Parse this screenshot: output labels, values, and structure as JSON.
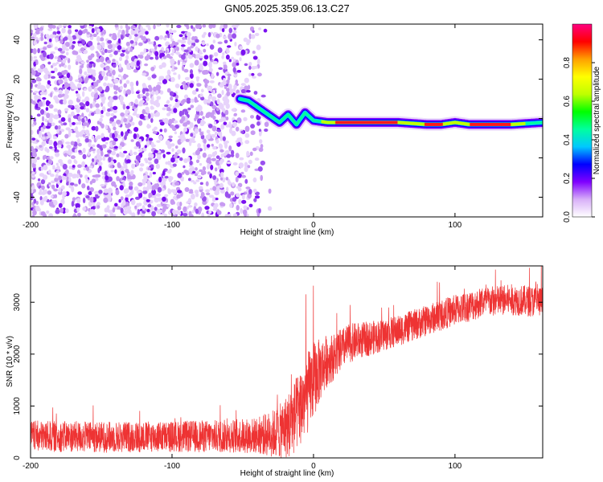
{
  "title": "GN05.2025.359.06.13.C27",
  "chart_data": [
    {
      "type": "heatmap",
      "xlabel": "Height of straight line (km)",
      "ylabel": "Frequency (Hz)",
      "xlim": [
        -200,
        162
      ],
      "ylim": [
        -50,
        48
      ],
      "xticks": [
        -200,
        -100,
        0,
        100
      ],
      "yticks": [
        -40,
        -20,
        0,
        20,
        40
      ],
      "grid": false,
      "colorbar": {
        "label": "Normalized spectral amplitude",
        "range": [
          0,
          1
        ],
        "ticks": [
          "0.0",
          "0.2",
          "0.4",
          "0.6",
          "0.8"
        ],
        "colors": [
          "#ffffff",
          "#d8b0f8",
          "#7f00ff",
          "#0000ff",
          "#00c8ff",
          "#00ff9f",
          "#00ff00",
          "#bfff00",
          "#ffff00",
          "#ffa000",
          "#ff0000",
          "#ff0080"
        ]
      },
      "ridge": {
        "x": [
          -52,
          -46,
          -42,
          -38,
          -34,
          -30,
          -24,
          -18,
          -12,
          -6,
          0,
          10,
          20,
          40,
          60,
          80,
          90,
          100,
          110,
          120,
          140,
          162
        ],
        "y": [
          10,
          9,
          7,
          5,
          3,
          1,
          -2,
          2,
          -3,
          3,
          -1,
          -2,
          -2,
          -2,
          -2,
          -3,
          -3,
          -2,
          -3,
          -3,
          -3,
          -2
        ]
      },
      "noise_region": {
        "x_min": -200,
        "x_max": -40
      }
    },
    {
      "type": "line",
      "xlabel": "Height of straight line (km)",
      "ylabel": "SNR (10 * v/v)",
      "xlim": [
        -200,
        162
      ],
      "ylim": [
        0,
        3700
      ],
      "xticks": [
        -200,
        -100,
        0,
        100
      ],
      "yticks": [
        0,
        1000,
        2000,
        3000
      ],
      "grid": false,
      "series": [
        {
          "color": "#ee3333",
          "x": [
            -200,
            -150,
            -100,
            -60,
            -40,
            -25,
            -15,
            -5,
            0,
            5,
            10,
            15,
            20,
            25,
            30,
            40,
            60,
            80,
            100,
            120,
            140,
            162
          ],
          "y": [
            420,
            400,
            410,
            420,
            430,
            480,
            700,
            1200,
            1500,
            1700,
            1900,
            1950,
            2100,
            2200,
            2250,
            2300,
            2450,
            2650,
            2850,
            3000,
            3050,
            3000
          ],
          "noise_amplitude": [
            300,
            300,
            300,
            320,
            350,
            500,
            700,
            800,
            750,
            600,
            500,
            450,
            400,
            380,
            360,
            330,
            300,
            300,
            300,
            300,
            300,
            300
          ]
        }
      ]
    }
  ]
}
